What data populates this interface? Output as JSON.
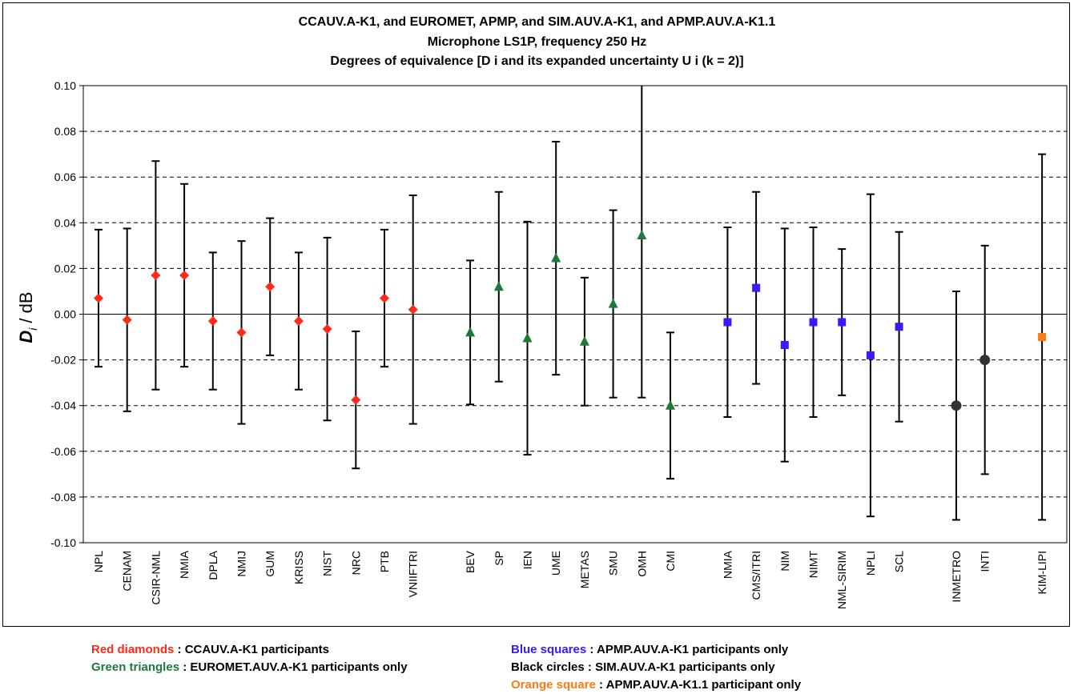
{
  "chart_data": {
    "type": "scatter",
    "title_lines": [
      "CCAUV.A-K1, and EUROMET, APMP, and SIM.AUV.A-K1, and APMP.AUV.A-K1.1",
      "Microphone LS1P, frequency 250 Hz",
      "Degrees of equivalence [D i  and its expanded uncertainty U i  (k = 2)]"
    ],
    "ylabel": "D i  / dB",
    "ylim": [
      -0.1,
      0.1
    ],
    "yticks": [
      "0.10",
      "0.08",
      "0.06",
      "0.04",
      "0.02",
      "0.00",
      "-0.02",
      "-0.04",
      "-0.06",
      "-0.08",
      "-0.10"
    ],
    "ytick_values": [
      0.1,
      0.08,
      0.06,
      0.04,
      0.02,
      0.0,
      -0.02,
      -0.04,
      -0.06,
      -0.08,
      -0.1
    ],
    "grid": "horizontal dashed",
    "groups": [
      {
        "marker": "diamond",
        "color": "#ff2a1a",
        "points": [
          {
            "label": "NPL",
            "x": 1,
            "value": 0.007,
            "upper": 0.037,
            "lower": -0.023
          },
          {
            "label": "CENAM",
            "x": 2,
            "value": -0.0025,
            "upper": 0.0375,
            "lower": -0.0425
          },
          {
            "label": "CSIR-NML",
            "x": 3,
            "value": 0.017,
            "upper": 0.067,
            "lower": -0.033
          },
          {
            "label": "NMIA",
            "x": 4,
            "value": 0.017,
            "upper": 0.057,
            "lower": -0.023
          },
          {
            "label": "DPLA",
            "x": 5,
            "value": -0.003,
            "upper": 0.027,
            "lower": -0.033
          },
          {
            "label": "NMIJ",
            "x": 6,
            "value": -0.008,
            "upper": 0.032,
            "lower": -0.048
          },
          {
            "label": "GUM",
            "x": 7,
            "value": 0.012,
            "upper": 0.042,
            "lower": -0.018
          },
          {
            "label": "KRISS",
            "x": 8,
            "value": -0.003,
            "upper": 0.027,
            "lower": -0.033
          },
          {
            "label": "NIST",
            "x": 9,
            "value": -0.0065,
            "upper": 0.0335,
            "lower": -0.0465
          },
          {
            "label": "NRC",
            "x": 10,
            "value": -0.0375,
            "upper": -0.0075,
            "lower": -0.0675
          },
          {
            "label": "PTB",
            "x": 11,
            "value": 0.007,
            "upper": 0.037,
            "lower": -0.023
          },
          {
            "label": "VNIIFTRI",
            "x": 12,
            "value": 0.002,
            "upper": 0.052,
            "lower": -0.048
          }
        ]
      },
      {
        "marker": "triangle",
        "color": "#1f7a3a",
        "points": [
          {
            "label": "BEV",
            "x": 14,
            "value": -0.008,
            "upper": 0.0235,
            "lower": -0.0395
          },
          {
            "label": "SP",
            "x": 15,
            "value": 0.012,
            "upper": 0.0535,
            "lower": -0.0295
          },
          {
            "label": "IEN",
            "x": 16,
            "value": -0.0105,
            "upper": 0.0405,
            "lower": -0.0615
          },
          {
            "label": "UME",
            "x": 17,
            "value": 0.0245,
            "upper": 0.0755,
            "lower": -0.0265
          },
          {
            "label": "METAS",
            "x": 18,
            "value": -0.012,
            "upper": 0.016,
            "lower": -0.04
          },
          {
            "label": "SMU",
            "x": 19,
            "value": 0.0045,
            "upper": 0.0455,
            "lower": -0.0365
          },
          {
            "label": "OMH",
            "x": 20,
            "value": 0.0345,
            "upper": 0.1055,
            "lower": -0.0365
          },
          {
            "label": "CMI",
            "x": 21,
            "value": -0.04,
            "upper": -0.008,
            "lower": -0.072
          }
        ]
      },
      {
        "marker": "square",
        "color": "#3a1aff",
        "points": [
          {
            "label": "NMIA",
            "x": 23,
            "value": -0.0035,
            "upper": 0.038,
            "lower": -0.045
          },
          {
            "label": "CMS/ITRI",
            "x": 24,
            "value": 0.0115,
            "upper": 0.0535,
            "lower": -0.0305
          },
          {
            "label": "NIM",
            "x": 25,
            "value": -0.0135,
            "upper": 0.0375,
            "lower": -0.0645
          },
          {
            "label": "NIMT",
            "x": 26,
            "value": -0.0035,
            "upper": 0.038,
            "lower": -0.045
          },
          {
            "label": "NML-SIRIM",
            "x": 27,
            "value": -0.0035,
            "upper": 0.0285,
            "lower": -0.0355
          },
          {
            "label": "NPLI",
            "x": 28,
            "value": -0.018,
            "upper": 0.0525,
            "lower": -0.0885
          },
          {
            "label": "SCL",
            "x": 29,
            "value": -0.0055,
            "upper": 0.036,
            "lower": -0.047
          }
        ]
      },
      {
        "marker": "circle",
        "color": "#333333",
        "points": [
          {
            "label": "INMETRO",
            "x": 31,
            "value": -0.04,
            "upper": 0.01,
            "lower": -0.09
          },
          {
            "label": "INTI",
            "x": 32,
            "value": -0.02,
            "upper": 0.03,
            "lower": -0.07
          }
        ]
      },
      {
        "marker": "square",
        "color": "#ff7a1a",
        "points": [
          {
            "label": "KIM-LIPI",
            "x": 34,
            "value": -0.01,
            "upper": 0.07,
            "lower": -0.09
          }
        ]
      }
    ],
    "legend": [
      {
        "key": "Red diamonds",
        "text": " : CCAUV.A-K1 participants",
        "color": "red"
      },
      {
        "key": "Green triangles",
        "text": " : EUROMET.AUV.A-K1 participants only",
        "color": "green"
      },
      {
        "key": "Blue squares",
        "text": " : APMP.AUV.A-K1 participants only",
        "color": "blue"
      },
      {
        "key": "Black circles",
        "text": " : SIM.AUV.A-K1 participants only",
        "color": "black"
      },
      {
        "key": "Orange square",
        "text": " : APMP.AUV.A-K1.1 participant only",
        "color": "orange"
      }
    ]
  }
}
